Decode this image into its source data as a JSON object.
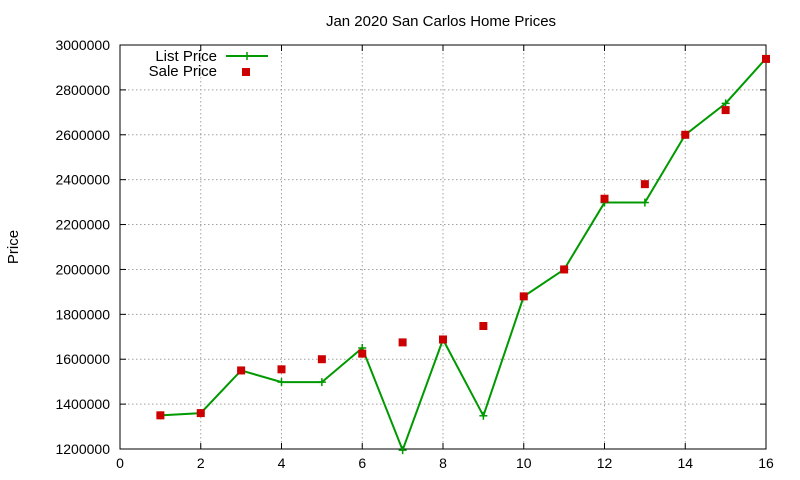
{
  "chart_data": {
    "type": "line",
    "title": "Jan 2020 San Carlos Home Prices",
    "xlabel": "",
    "ylabel": "Price",
    "xlim": [
      0,
      16
    ],
    "ylim": [
      1200000,
      3000000
    ],
    "xticks": [
      0,
      2,
      4,
      6,
      8,
      10,
      12,
      14,
      16
    ],
    "yticks": [
      1200000,
      1400000,
      1600000,
      1800000,
      2000000,
      2200000,
      2400000,
      2600000,
      2800000,
      3000000
    ],
    "grid": true,
    "legend_position": "top-left",
    "series": [
      {
        "name": "List Price",
        "style": "line-with-plus-markers",
        "color": "#009900",
        "x": [
          1,
          2,
          3,
          4,
          5,
          6,
          7,
          8,
          9,
          10,
          11,
          12,
          13,
          14,
          15,
          16
        ],
        "y": [
          1350000,
          1360000,
          1550000,
          1498000,
          1498000,
          1650000,
          1195000,
          1688000,
          1348000,
          1880000,
          2000000,
          2298000,
          2298000,
          2600000,
          2740000,
          2940000
        ]
      },
      {
        "name": "Sale Price",
        "style": "square-markers",
        "color": "#cc0000",
        "x": [
          1,
          2,
          3,
          4,
          5,
          6,
          7,
          8,
          9,
          10,
          11,
          12,
          13,
          14,
          15,
          16
        ],
        "y": [
          1350000,
          1360000,
          1550000,
          1555000,
          1600000,
          1625000,
          1675000,
          1688000,
          1748000,
          1880000,
          2000000,
          2315000,
          2380000,
          2600000,
          2710000,
          2938000
        ]
      }
    ]
  }
}
